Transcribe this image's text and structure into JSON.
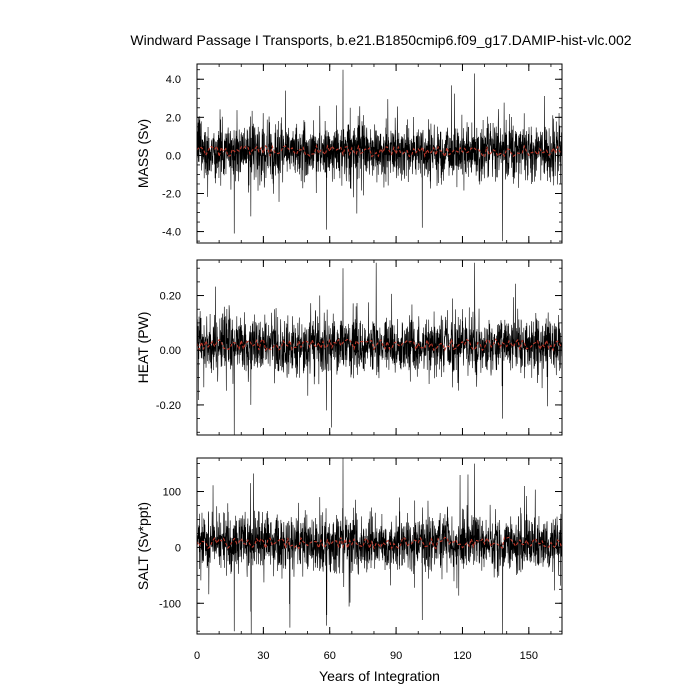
{
  "title": "Windward Passage I Transports, b.e21.B1850cmip6.f09_g17.DAMIP-hist-vlc.002",
  "colors": {
    "monthly_series": "#000000",
    "annual_mean_series": "#c0392b",
    "background": "#ffffff"
  },
  "chart_data": [
    {
      "type": "line",
      "title": "",
      "ylabel": "MASS (Sv)",
      "xlabel": "",
      "xlim": [
        0,
        165
      ],
      "ylim": [
        -4.6,
        4.8
      ],
      "yticks": [
        -4.0,
        -2.0,
        0.0,
        2.0,
        4.0
      ],
      "ytick_labels": [
        "-4.0",
        "-2.0",
        "0.0",
        "2.0",
        "4.0"
      ],
      "xticks": [
        0,
        30,
        60,
        90,
        120,
        150
      ],
      "grid": false,
      "series": [
        {
          "kind": "monthly",
          "mean": 0.2,
          "std": 0.9,
          "spikes": [
            [
              16.8,
              -4.1
            ],
            [
              55.5,
              2.6
            ],
            [
              58.5,
              -3.9
            ],
            [
              66.0,
              4.5
            ],
            [
              101.8,
              -3.8
            ],
            [
              125.5,
              4.3
            ],
            [
              138.2,
              -4.5
            ],
            [
              24.3,
              -3.2
            ],
            [
              40.0,
              3.4
            ]
          ]
        },
        {
          "kind": "annual_mean",
          "mean": 0.2,
          "amplitude": 0.3
        }
      ]
    },
    {
      "type": "line",
      "title": "",
      "ylabel": "HEAT (PW)",
      "xlabel": "",
      "xlim": [
        0,
        165
      ],
      "ylim": [
        -0.31,
        0.33
      ],
      "yticks": [
        -0.2,
        0.0,
        0.2
      ],
      "ytick_labels": [
        "-0.20",
        "0.00",
        "0.20"
      ],
      "xticks": [
        0,
        30,
        60,
        90,
        120,
        150
      ],
      "grid": false,
      "series": [
        {
          "kind": "monthly",
          "mean": 0.02,
          "std": 0.06,
          "spikes": [
            [
              16.8,
              -0.31
            ],
            [
              55.5,
              0.2
            ],
            [
              58.5,
              -0.22
            ],
            [
              66.0,
              0.3
            ],
            [
              81.0,
              0.32
            ],
            [
              125.5,
              0.32
            ],
            [
              138.2,
              -0.25
            ],
            [
              24.3,
              -0.2
            ]
          ]
        },
        {
          "kind": "annual_mean",
          "mean": 0.02,
          "amplitude": 0.02
        }
      ]
    },
    {
      "type": "line",
      "title": "",
      "ylabel": "SALT (Sv*ppt)",
      "xlabel": "Years of Integration",
      "xlim": [
        0,
        165
      ],
      "ylim": [
        -155,
        160
      ],
      "yticks": [
        -100,
        0,
        100
      ],
      "ytick_labels": [
        "-100",
        "0",
        "100"
      ],
      "xticks": [
        0,
        30,
        60,
        90,
        120,
        150
      ],
      "xtick_labels": [
        "0",
        "30",
        "60",
        "90",
        "120",
        "150"
      ],
      "grid": false,
      "series": [
        {
          "kind": "monthly",
          "mean": 8,
          "std": 30,
          "spikes": [
            [
              16.8,
              -150
            ],
            [
              55.5,
              90
            ],
            [
              58.5,
              -140
            ],
            [
              66.0,
              160
            ],
            [
              101.8,
              -130
            ],
            [
              125.5,
              150
            ],
            [
              138.2,
              -155
            ],
            [
              24.3,
              -115
            ]
          ]
        },
        {
          "kind": "annual_mean",
          "mean": 8,
          "amplitude": 10
        }
      ]
    }
  ]
}
